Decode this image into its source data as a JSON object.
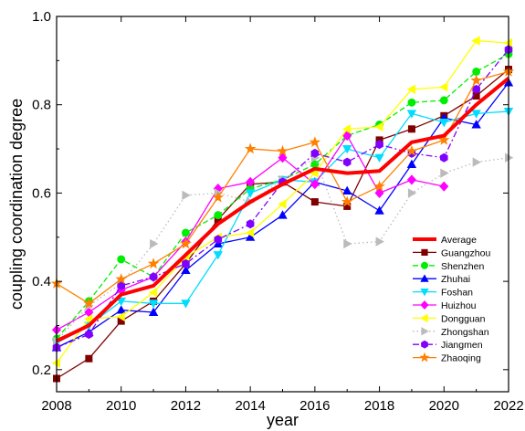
{
  "chart_data": {
    "type": "line",
    "xlabel": "year",
    "ylabel": "coupling coordination degree",
    "xlim": [
      2008,
      2022
    ],
    "ylim": [
      0.15,
      1.0
    ],
    "x_ticks": [
      2008,
      2010,
      2012,
      2014,
      2016,
      2018,
      2020,
      2022
    ],
    "y_ticks": [
      0.2,
      0.4,
      0.6,
      0.8,
      1.0
    ],
    "x_tick_labels": [
      "2008",
      "2010",
      "2012",
      "2014",
      "2016",
      "2018",
      "2020",
      "2022"
    ],
    "y_tick_labels": [
      "0.2",
      "0.4",
      "0.6",
      "0.8",
      "1.0"
    ],
    "grid": false,
    "legend_position": "bottom-right",
    "x": [
      2008,
      2009,
      2010,
      2011,
      2012,
      2013,
      2014,
      2015,
      2016,
      2017,
      2018,
      2019,
      2020,
      2021,
      2022
    ],
    "series": [
      {
        "name": "Average",
        "color": "#ff0000",
        "marker": "none",
        "dash": "solid",
        "width": 4,
        "values": [
          0.265,
          0.3,
          0.37,
          0.39,
          0.46,
          0.53,
          0.58,
          0.62,
          0.655,
          0.645,
          0.65,
          0.715,
          0.73,
          0.8,
          0.86
        ]
      },
      {
        "name": "Guangzhou",
        "color": "#800000",
        "marker": "square",
        "dash": "solid",
        "width": 1.3,
        "values": [
          0.18,
          0.225,
          0.31,
          0.355,
          0.44,
          0.54,
          0.62,
          0.625,
          0.58,
          0.57,
          0.72,
          0.745,
          0.775,
          0.82,
          0.88
        ]
      },
      {
        "name": "Shenzhen",
        "color": "#00ee00",
        "marker": "circle",
        "dash": "dash",
        "width": 1.3,
        "values": [
          0.27,
          0.355,
          0.45,
          0.41,
          0.51,
          0.55,
          0.61,
          0.63,
          0.665,
          0.73,
          0.755,
          0.805,
          0.81,
          0.875,
          0.915
        ]
      },
      {
        "name": "Zhuhai",
        "color": "#0000ff",
        "marker": "triangle-up",
        "dash": "solid",
        "width": 1.3,
        "values": [
          0.25,
          0.285,
          0.335,
          0.33,
          0.425,
          0.485,
          0.5,
          0.55,
          0.625,
          0.605,
          0.56,
          0.665,
          0.77,
          0.755,
          0.85
        ]
      },
      {
        "name": "Foshan",
        "color": "#00ddff",
        "marker": "triangle-down",
        "dash": "solid",
        "width": 1.3,
        "values": [
          0.26,
          0.3,
          0.355,
          0.35,
          0.35,
          0.46,
          0.6,
          0.63,
          0.625,
          0.7,
          0.68,
          0.78,
          0.76,
          0.78,
          0.785
        ]
      },
      {
        "name": "Huizhou",
        "color": "#ff00ff",
        "marker": "diamond",
        "dash": "solid",
        "width": 1.3,
        "values": [
          0.29,
          0.33,
          0.38,
          0.41,
          0.49,
          0.61,
          0.625,
          0.68,
          0.62,
          0.73,
          0.6,
          0.63,
          0.615,
          null,
          null
        ]
      },
      {
        "name": "Dongguan",
        "color": "#ffff00",
        "marker": "triangle-left",
        "dash": "solid",
        "width": 1.3,
        "values": [
          0.215,
          0.315,
          0.32,
          0.375,
          0.455,
          0.5,
          0.51,
          0.575,
          0.645,
          0.745,
          0.75,
          0.835,
          0.84,
          0.945,
          0.94
        ]
      },
      {
        "name": "Zhongshan",
        "color": "#bbbbbb",
        "marker": "triangle-right",
        "dash": "dot",
        "width": 1.3,
        "values": [
          0.265,
          0.345,
          0.395,
          0.485,
          0.595,
          0.6,
          0.58,
          0.63,
          0.68,
          0.485,
          0.49,
          0.6,
          0.645,
          0.67,
          0.68
        ]
      },
      {
        "name": "Jiangmen",
        "color": "#8000ff",
        "marker": "hexagon",
        "dash": "dashdot",
        "width": 1.3,
        "values": [
          0.25,
          0.28,
          0.39,
          0.41,
          0.44,
          0.495,
          0.53,
          0.625,
          0.69,
          0.67,
          0.71,
          0.69,
          0.68,
          0.835,
          0.925
        ]
      },
      {
        "name": "Zhaoqing",
        "color": "#ff8000",
        "marker": "star",
        "dash": "solid",
        "width": 1.3,
        "values": [
          0.395,
          0.35,
          0.405,
          0.44,
          0.485,
          0.59,
          0.7,
          0.695,
          0.715,
          0.58,
          0.615,
          0.695,
          0.72,
          0.855,
          0.875
        ]
      }
    ]
  }
}
